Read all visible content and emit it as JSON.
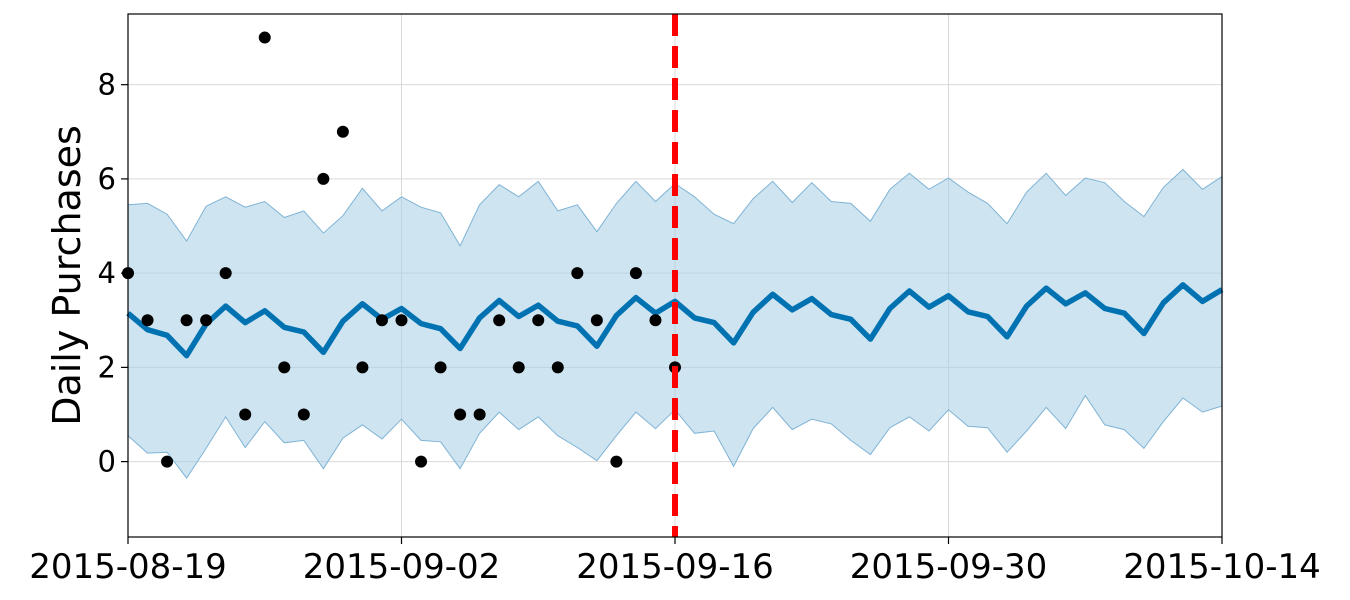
{
  "chart_data": {
    "type": "line",
    "xlabel": "",
    "ylabel": "Daily Purchases",
    "xlim": [
      "2015-08-19",
      "2015-10-14"
    ],
    "ylim": [
      -1.6,
      9.5
    ],
    "x_ticks": [
      "2015-08-19",
      "2015-09-02",
      "2015-09-16",
      "2015-09-30",
      "2015-10-14"
    ],
    "y_ticks": [
      0,
      2,
      4,
      6,
      8
    ],
    "grid": true,
    "colors": {
      "forecast": "#0072B2",
      "interval": "#a6cee3",
      "actual": "#000000",
      "cutoff": "#ff0000",
      "grid": "#d9d9d9"
    },
    "cutoff_date": "2015-09-16",
    "actual": {
      "x": [
        "2015-08-19",
        "2015-08-20",
        "2015-08-21",
        "2015-08-22",
        "2015-08-23",
        "2015-08-24",
        "2015-08-25",
        "2015-08-26",
        "2015-08-27",
        "2015-08-28",
        "2015-08-29",
        "2015-08-30",
        "2015-08-31",
        "2015-09-01",
        "2015-09-02",
        "2015-09-03",
        "2015-09-04",
        "2015-09-05",
        "2015-09-06",
        "2015-09-07",
        "2015-09-08",
        "2015-09-09",
        "2015-09-10",
        "2015-09-11",
        "2015-09-12",
        "2015-09-13",
        "2015-09-14",
        "2015-09-15",
        "2015-09-16"
      ],
      "y": [
        4,
        3,
        0,
        3,
        3,
        4,
        1,
        9,
        2,
        1,
        6,
        7,
        2,
        3,
        3,
        0,
        2,
        1,
        1,
        3,
        2,
        3,
        2,
        4,
        3,
        0,
        4,
        3,
        2
      ]
    },
    "forecast": {
      "x": [
        "2015-08-19",
        "2015-08-20",
        "2015-08-21",
        "2015-08-22",
        "2015-08-23",
        "2015-08-24",
        "2015-08-25",
        "2015-08-26",
        "2015-08-27",
        "2015-08-28",
        "2015-08-29",
        "2015-08-30",
        "2015-08-31",
        "2015-09-01",
        "2015-09-02",
        "2015-09-03",
        "2015-09-04",
        "2015-09-05",
        "2015-09-06",
        "2015-09-07",
        "2015-09-08",
        "2015-09-09",
        "2015-09-10",
        "2015-09-11",
        "2015-09-12",
        "2015-09-13",
        "2015-09-14",
        "2015-09-15",
        "2015-09-16",
        "2015-09-17",
        "2015-09-18",
        "2015-09-19",
        "2015-09-20",
        "2015-09-21",
        "2015-09-22",
        "2015-09-23",
        "2015-09-24",
        "2015-09-25",
        "2015-09-26",
        "2015-09-27",
        "2015-09-28",
        "2015-09-29",
        "2015-09-30",
        "2015-10-01",
        "2015-10-02",
        "2015-10-03",
        "2015-10-04",
        "2015-10-05",
        "2015-10-06",
        "2015-10-07",
        "2015-10-08",
        "2015-10-09",
        "2015-10-10",
        "2015-10-11",
        "2015-10-12",
        "2015-10-13",
        "2015-10-14"
      ],
      "yhat": [
        3.15,
        2.8,
        2.68,
        2.25,
        2.92,
        3.3,
        2.95,
        3.2,
        2.85,
        2.75,
        2.32,
        2.98,
        3.35,
        3.02,
        3.25,
        2.93,
        2.82,
        2.4,
        3.05,
        3.42,
        3.08,
        3.32,
        2.98,
        2.88,
        2.45,
        3.1,
        3.48,
        3.15,
        3.4,
        3.05,
        2.95,
        2.52,
        3.17,
        3.55,
        3.22,
        3.46,
        3.12,
        3.02,
        2.6,
        3.25,
        3.62,
        3.28,
        3.52,
        3.18,
        3.08,
        2.65,
        3.3,
        3.68,
        3.35,
        3.58,
        3.25,
        3.15,
        2.72,
        3.37,
        3.75,
        3.4,
        3.65
      ],
      "yhat_lower": [
        0.55,
        0.18,
        0.2,
        -0.35,
        0.28,
        0.95,
        0.3,
        0.85,
        0.4,
        0.45,
        -0.15,
        0.5,
        0.78,
        0.48,
        0.9,
        0.45,
        0.42,
        -0.15,
        0.6,
        1.05,
        0.68,
        0.95,
        0.55,
        0.3,
        0.02,
        0.55,
        1.05,
        0.7,
        1.1,
        0.6,
        0.65,
        -0.1,
        0.7,
        1.15,
        0.68,
        0.9,
        0.8,
        0.45,
        0.15,
        0.72,
        0.95,
        0.65,
        1.1,
        0.75,
        0.72,
        0.2,
        0.65,
        1.15,
        0.7,
        1.4,
        0.78,
        0.68,
        0.28,
        0.85,
        1.35,
        1.05,
        1.18
      ],
      "yhat_upper": [
        5.45,
        5.48,
        5.25,
        4.68,
        5.42,
        5.62,
        5.4,
        5.52,
        5.18,
        5.32,
        4.85,
        5.22,
        5.8,
        5.32,
        5.62,
        5.4,
        5.28,
        4.58,
        5.45,
        5.88,
        5.62,
        5.95,
        5.32,
        5.45,
        4.88,
        5.48,
        5.95,
        5.52,
        5.9,
        5.62,
        5.25,
        5.05,
        5.58,
        5.95,
        5.5,
        5.92,
        5.52,
        5.48,
        5.1,
        5.78,
        6.12,
        5.78,
        6.02,
        5.72,
        5.48,
        5.05,
        5.72,
        6.12,
        5.65,
        6.02,
        5.92,
        5.52,
        5.2,
        5.82,
        6.2,
        5.78,
        6.05
      ]
    }
  }
}
